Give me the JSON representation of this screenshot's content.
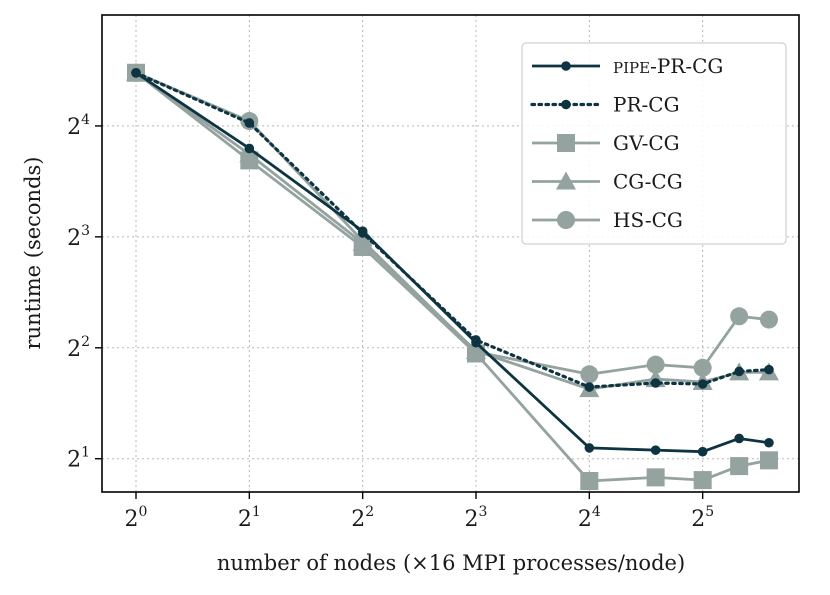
{
  "chart_data": {
    "type": "line",
    "title": "",
    "xlabel": "number of nodes (×16 MPI processes/node)",
    "ylabel": "runtime (seconds)",
    "x_scale": "log2",
    "y_scale": "log2",
    "xlim_log2": [
      -0.3,
      5.85
    ],
    "ylim_log2": [
      0.7,
      5.0
    ],
    "xticks": [
      {
        "base": "2",
        "exp": "0",
        "log2": 0
      },
      {
        "base": "2",
        "exp": "1",
        "log2": 1
      },
      {
        "base": "2",
        "exp": "2",
        "log2": 2
      },
      {
        "base": "2",
        "exp": "3",
        "log2": 3
      },
      {
        "base": "2",
        "exp": "4",
        "log2": 4
      },
      {
        "base": "2",
        "exp": "5",
        "log2": 5
      }
    ],
    "yticks": [
      {
        "base": "2",
        "exp": "1",
        "log2": 1
      },
      {
        "base": "2",
        "exp": "2",
        "log2": 2
      },
      {
        "base": "2",
        "exp": "3",
        "log2": 3
      },
      {
        "base": "2",
        "exp": "4",
        "log2": 4
      }
    ],
    "x_nodes": [
      1,
      2,
      4,
      8,
      16,
      24,
      32,
      40,
      48
    ],
    "series": [
      {
        "name_prefix": "pipe",
        "name": "-PR-CG",
        "color": "#0d3440",
        "style": "solid",
        "marker": "dot",
        "values": [
          22.3,
          13.9,
          8.29,
          4.13,
          2.14,
          2.11,
          2.09,
          2.27,
          2.21
        ]
      },
      {
        "name_prefix": "",
        "name": "PR-CG",
        "color": "#0d3440",
        "style": "dotted",
        "marker": "dot",
        "values": [
          22.3,
          16.3,
          8.2,
          4.2,
          3.13,
          3.21,
          3.19,
          3.45,
          3.49
        ]
      },
      {
        "name_prefix": "",
        "name": "GV-CG",
        "color": "#94a2a0",
        "style": "solid",
        "marker": "square",
        "values": [
          22.3,
          12.9,
          7.51,
          3.86,
          1.74,
          1.78,
          1.75,
          1.91,
          1.98
        ]
      },
      {
        "name_prefix": "",
        "name": "CG-CG",
        "color": "#94a2a0",
        "style": "solid",
        "marker": "triangle",
        "values": [
          22.3,
          13.4,
          7.7,
          3.92,
          3.09,
          3.29,
          3.23,
          3.43,
          3.43
        ]
      },
      {
        "name_prefix": "",
        "name": "HS-CG",
        "color": "#94a2a0",
        "style": "solid",
        "marker": "circle",
        "values": [
          22.3,
          16.5,
          7.8,
          3.9,
          3.39,
          3.6,
          3.53,
          4.87,
          4.77
        ]
      }
    ],
    "legend_position": "top-right",
    "grid": true
  }
}
